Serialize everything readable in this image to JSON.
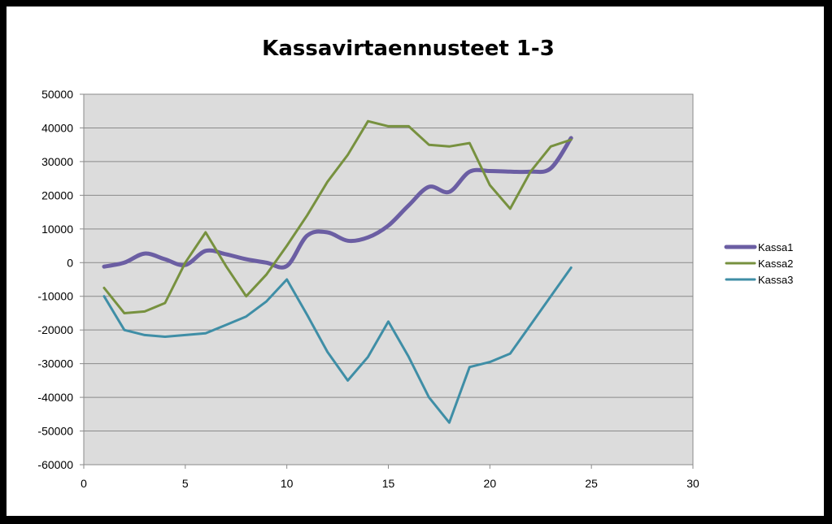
{
  "chart_data": {
    "type": "line",
    "title": "Kassavirtaennusteet 1-3",
    "xlabel": "",
    "ylabel": "",
    "xlim": [
      0,
      30
    ],
    "ylim": [
      -60000,
      50000
    ],
    "x_ticks": [
      0,
      5,
      10,
      15,
      20,
      25,
      30
    ],
    "y_ticks": [
      50000,
      40000,
      30000,
      20000,
      10000,
      0,
      -10000,
      -20000,
      -30000,
      -40000,
      -50000,
      -60000
    ],
    "grid": true,
    "legend_position": "right",
    "series": [
      {
        "name": "Kassa1",
        "color": "#6b5ea3",
        "width": 5,
        "x": [
          1,
          2,
          3,
          4,
          5,
          6,
          7,
          8,
          9,
          10,
          11,
          12,
          13,
          14,
          15,
          16,
          17,
          18,
          19,
          20,
          21,
          22,
          23,
          24
        ],
        "values": [
          -1200,
          0,
          2700,
          1000,
          -700,
          3500,
          2500,
          1000,
          0,
          -1000,
          8000,
          9000,
          6500,
          7500,
          11000,
          17000,
          22500,
          21000,
          27000,
          27200,
          27000,
          27000,
          28000,
          37000
        ]
      },
      {
        "name": "Kassa2",
        "color": "#77913f",
        "width": 3,
        "x": [
          1,
          2,
          3,
          4,
          5,
          6,
          7,
          8,
          9,
          10,
          11,
          12,
          13,
          14,
          15,
          16,
          17,
          18,
          19,
          20,
          21,
          22,
          23,
          24
        ],
        "values": [
          -7500,
          -15000,
          -14500,
          -12000,
          0,
          9000,
          -1000,
          -10000,
          -3500,
          5000,
          14000,
          24000,
          32000,
          42000,
          40500,
          40500,
          35000,
          34500,
          35500,
          23000,
          16000,
          27000,
          34500,
          36500
        ]
      },
      {
        "name": "Kassa3",
        "color": "#3f8ea6",
        "width": 3,
        "x": [
          1,
          2,
          3,
          4,
          5,
          6,
          7,
          8,
          9,
          10,
          11,
          12,
          13,
          14,
          15,
          16,
          17,
          18,
          19,
          20,
          21,
          22,
          23,
          24
        ],
        "values": [
          -10000,
          -20000,
          -21500,
          -22000,
          -21500,
          -21000,
          -18500,
          -16000,
          -11500,
          -5000,
          -15500,
          -26500,
          -35000,
          -28000,
          -17500,
          -28000,
          -40000,
          -47500,
          -31000,
          -29500,
          -27000,
          -18500,
          -10000,
          -1500
        ]
      }
    ]
  }
}
